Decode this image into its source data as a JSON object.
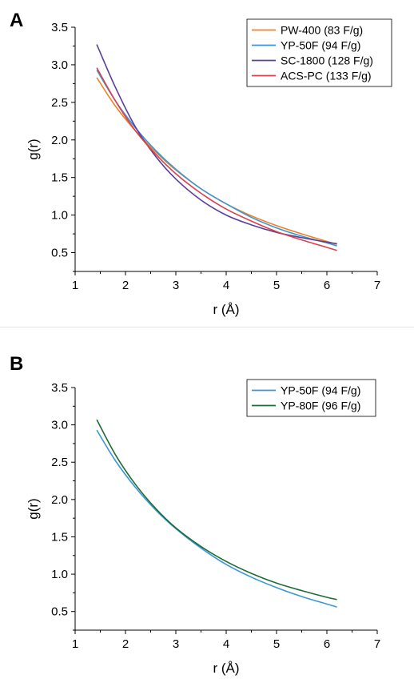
{
  "chart_data": [
    {
      "type": "line",
      "panel_label": "A",
      "xlabel": "r (Å)",
      "ylabel": "g(r)",
      "xlim": [
        1,
        7
      ],
      "ylim": [
        0.25,
        3.5
      ],
      "xticks": [
        1,
        2,
        3,
        4,
        5,
        6,
        7
      ],
      "yticks": [
        0.5,
        1.0,
        1.5,
        2.0,
        2.5,
        3.0,
        3.5
      ],
      "ytick_labels": [
        "0.5",
        "1.0",
        "1.5",
        "2.0",
        "2.5",
        "3.0",
        "3.5"
      ],
      "legend_position": "top-right",
      "grid": false,
      "series": [
        {
          "name": "PW-400 (83 F/g)",
          "color": "#f07f22",
          "x": [
            1.43,
            1.8,
            2.2,
            2.6,
            3.0,
            3.5,
            4.0,
            4.5,
            5.0,
            5.5,
            6.0,
            6.2
          ],
          "y": [
            2.83,
            2.45,
            2.12,
            1.84,
            1.6,
            1.35,
            1.15,
            0.99,
            0.86,
            0.75,
            0.65,
            0.61
          ]
        },
        {
          "name": "YP-50F (94 F/g)",
          "color": "#3b97d3",
          "x": [
            1.43,
            1.8,
            2.2,
            2.6,
            3.0,
            3.5,
            4.0,
            4.5,
            5.0,
            5.5,
            6.0,
            6.2
          ],
          "y": [
            2.93,
            2.52,
            2.16,
            1.86,
            1.61,
            1.35,
            1.15,
            0.97,
            0.83,
            0.72,
            0.63,
            0.59
          ]
        },
        {
          "name": "SC-1800 (128 F/g)",
          "color": "#5a3f9a",
          "x": [
            1.43,
            1.8,
            2.2,
            2.6,
            3.0,
            3.5,
            4.0,
            4.5,
            5.0,
            5.5,
            6.0,
            6.2
          ],
          "y": [
            3.27,
            2.7,
            2.17,
            1.78,
            1.48,
            1.2,
            1.0,
            0.87,
            0.77,
            0.7,
            0.64,
            0.62
          ]
        },
        {
          "name": "ACS-PC (133 F/g)",
          "color": "#d9404f",
          "x": [
            1.43,
            1.8,
            2.2,
            2.6,
            3.0,
            3.5,
            4.0,
            4.5,
            5.0,
            5.5,
            6.0,
            6.2
          ],
          "y": [
            2.96,
            2.52,
            2.12,
            1.81,
            1.55,
            1.29,
            1.08,
            0.92,
            0.78,
            0.67,
            0.57,
            0.53
          ]
        }
      ]
    },
    {
      "type": "line",
      "panel_label": "B",
      "xlabel": "r (Å)",
      "ylabel": "g(r)",
      "xlim": [
        1,
        7
      ],
      "ylim": [
        0.25,
        3.5
      ],
      "xticks": [
        1,
        2,
        3,
        4,
        5,
        6,
        7
      ],
      "yticks": [
        0.5,
        1.0,
        1.5,
        2.0,
        2.5,
        3.0,
        3.5
      ],
      "ytick_labels": [
        "0.5",
        "1.0",
        "1.5",
        "2.0",
        "2.5",
        "3.0",
        "3.5"
      ],
      "legend_position": "top-right",
      "grid": false,
      "series": [
        {
          "name": "YP-50F (94 F/g)",
          "color": "#3b97d3",
          "x": [
            1.43,
            1.8,
            2.2,
            2.6,
            3.0,
            3.5,
            4.0,
            4.5,
            5.0,
            5.5,
            6.0,
            6.2
          ],
          "y": [
            2.93,
            2.52,
            2.16,
            1.86,
            1.61,
            1.35,
            1.13,
            0.96,
            0.82,
            0.7,
            0.6,
            0.56
          ]
        },
        {
          "name": "YP-80F (96 F/g)",
          "color": "#1e6b35",
          "x": [
            1.43,
            1.8,
            2.2,
            2.6,
            3.0,
            3.5,
            4.0,
            4.5,
            5.0,
            5.5,
            6.0,
            6.2
          ],
          "y": [
            3.07,
            2.6,
            2.2,
            1.88,
            1.62,
            1.37,
            1.17,
            1.01,
            0.88,
            0.78,
            0.69,
            0.66
          ]
        }
      ]
    }
  ]
}
